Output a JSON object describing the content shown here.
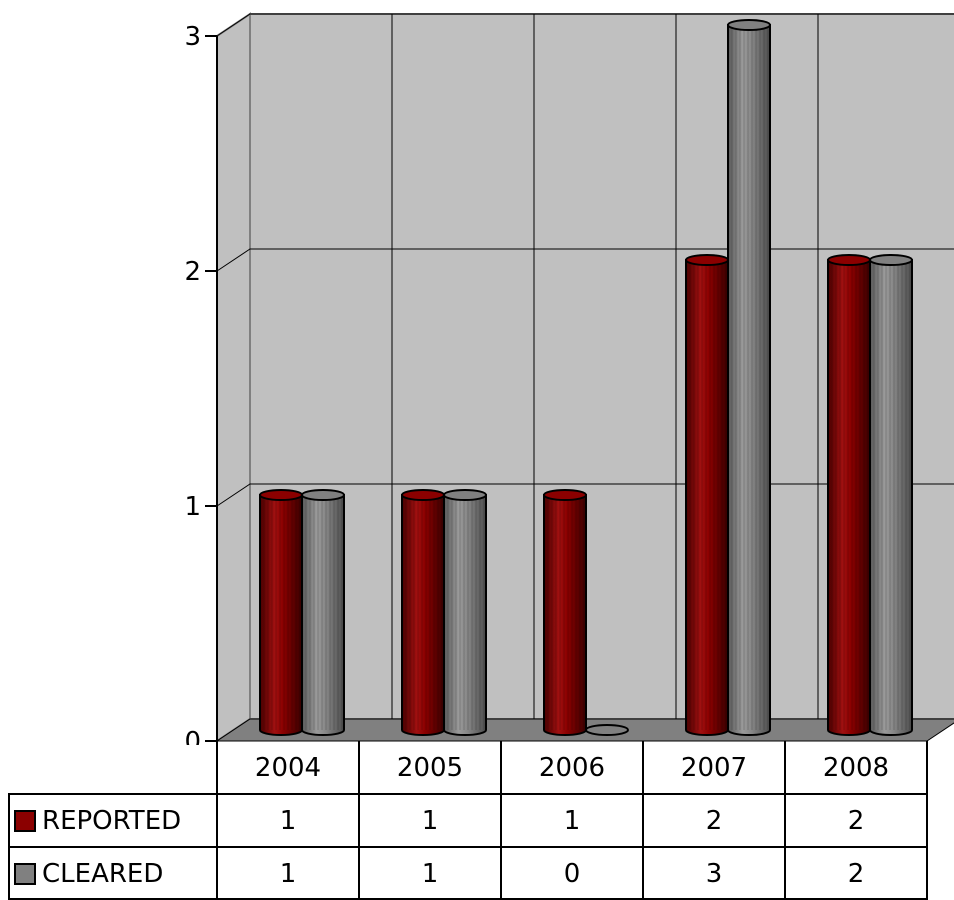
{
  "chart_data": {
    "type": "bar",
    "style": "3d-cylinder",
    "categories": [
      "2004",
      "2005",
      "2006",
      "2007",
      "2008"
    ],
    "series": [
      {
        "name": "REPORTED",
        "values": [
          1,
          1,
          1,
          2,
          2
        ],
        "color": "#8b0000"
      },
      {
        "name": "CLEARED",
        "values": [
          1,
          1,
          0,
          3,
          2
        ],
        "color": "#808080"
      }
    ],
    "ylim": [
      0,
      3
    ],
    "yticks": [
      "0",
      "1",
      "2",
      "3"
    ],
    "grid": true,
    "wall_color": "#c0c0c0",
    "floor_color": "#808080",
    "legend": "data-table-below"
  }
}
